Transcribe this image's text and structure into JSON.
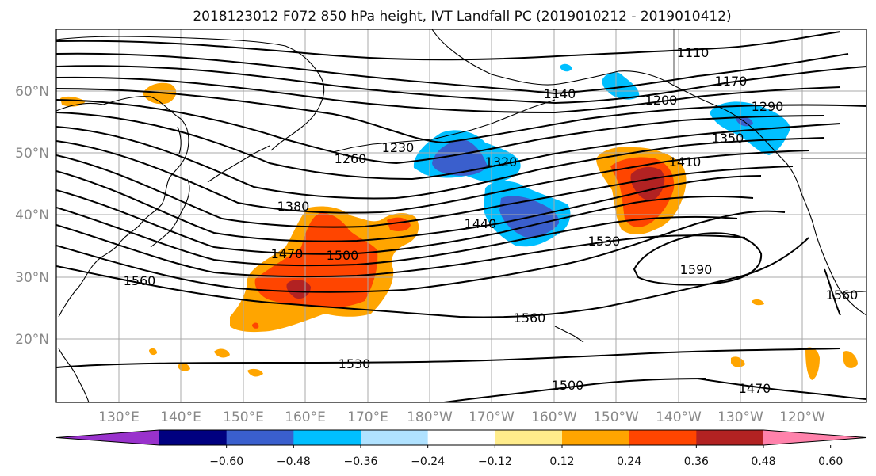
{
  "title": "2018123012 F072 850 hPa height, IVT Landfall PC (2019010212 - 2019010412)",
  "lat_labels": [
    "60°N",
    "50°N",
    "40°N",
    "30°N",
    "20°N"
  ],
  "lon_labels": [
    "130°E",
    "140°E",
    "150°E",
    "160°E",
    "170°E",
    "180°W",
    "170°W",
    "160°W",
    "150°W",
    "140°W",
    "130°W",
    "120°W"
  ],
  "contour_labels": [
    "1110",
    "1140",
    "1170",
    "1200",
    "1230",
    "1260",
    "1290",
    "1320",
    "1350",
    "1380",
    "1410",
    "1440",
    "1470",
    "1500",
    "1530",
    "1560",
    "1590",
    "1560",
    "1560",
    "1530",
    "1500",
    "1470"
  ],
  "colorbar": {
    "ticks": [
      "−0.60",
      "−0.48",
      "−0.36",
      "−0.24",
      "−0.12",
      "0.12",
      "0.24",
      "0.36",
      "0.48",
      "0.60"
    ],
    "colors": [
      "#9932cc",
      "#000080",
      "#3a5fcd",
      "#00bfff",
      "#b0e2ff",
      "#ffffff",
      "#ffec8b",
      "#ffa500",
      "#ff4500",
      "#b22222",
      "#ff82ab"
    ]
  }
}
